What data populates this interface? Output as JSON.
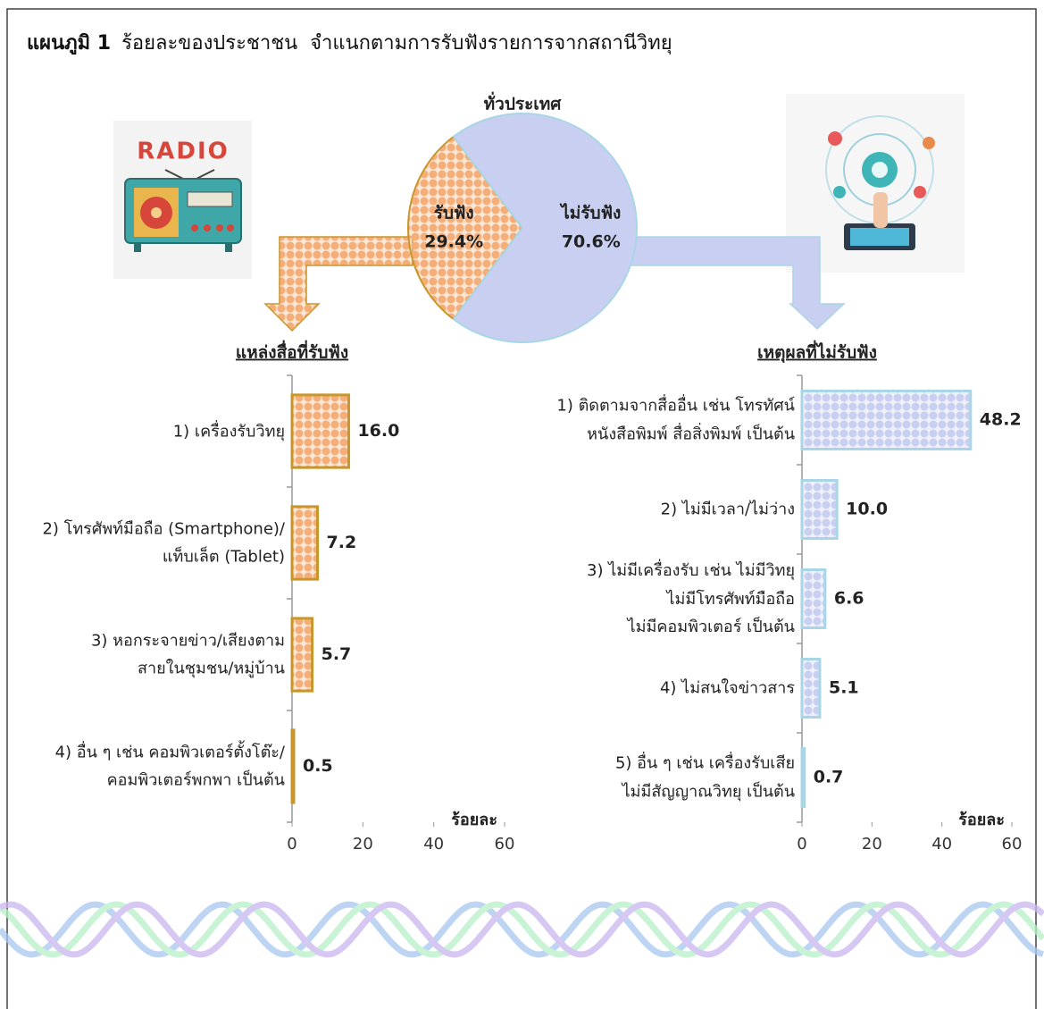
{
  "figure_label": "แผนภูมิ 1",
  "title": "ร้อยละของประชาชน  จำแนกตามการรับฟังรายการจากสถานีวิทยุ",
  "radio_image_text": "RADIO",
  "chart_data": [
    {
      "type": "pie",
      "title": "ทั่วประเทศ",
      "categories": [
        "รับฟัง",
        "ไม่รับฟัง"
      ],
      "values": [
        29.4,
        70.6
      ],
      "value_labels": [
        "29.4%",
        "70.6%"
      ],
      "colors": [
        "#f5ae78",
        "#c9cff0"
      ],
      "edgecolors": [
        "#c8962a",
        "#a9d6e6"
      ]
    },
    {
      "type": "barh",
      "title": "แหล่งสื่อที่รับฟัง",
      "categories": [
        "1) เครื่องรับวิทยุ",
        "2) โทรศัพท์มือถือ (Smartphone)/\nแท็บเล็ต (Tablet)",
        "3) หอกระจายข่าว/เสียงตาม\nสายในชุมชน/หมู่บ้าน",
        "4) อื่น ๆ เช่น คอมพิวเตอร์ตั้งโต๊ะ/\nคอมพิวเตอร์พกพา เป็นต้น"
      ],
      "values": [
        16.0,
        7.2,
        5.7,
        0.5
      ],
      "value_labels": [
        "16.0",
        "7.2",
        "5.7",
        "0.5"
      ],
      "color": "#f5ae78",
      "edgecolor": "#c8962a",
      "xlim": [
        0,
        60
      ],
      "xticks": [
        0,
        20,
        40,
        60
      ],
      "xlabel": "ร้อยละ"
    },
    {
      "type": "barh",
      "title": "เหตุผลที่ไม่รับฟัง",
      "categories": [
        "1) ติดตามจากสื่ออื่น เช่น โทรทัศน์\nหนังสือพิมพ์  สื่อสิ่งพิมพ์ เป็นต้น",
        "2) ไม่มีเวลา/ไม่ว่าง",
        "3) ไม่มีเครื่องรับ เช่น ไม่มีวิทยุ\nไม่มีโทรศัพท์มือถือ\nไม่มีคอมพิวเตอร์ เป็นต้น",
        "4) ไม่สนใจข่าวสาร",
        "5) อื่น ๆ เช่น เครื่องรับเสีย\nไม่มีสัญญาณวิทยุ เป็นต้น"
      ],
      "values": [
        48.2,
        10.0,
        6.6,
        5.1,
        0.7
      ],
      "value_labels": [
        "48.2",
        "10.0",
        "6.6",
        "5.1",
        "0.7"
      ],
      "color": "#c9cff0",
      "edgecolor": "#a9d6e6",
      "xlim": [
        0,
        60
      ],
      "xticks": [
        0,
        20,
        40,
        60
      ],
      "xlabel": "ร้อยละ"
    }
  ]
}
